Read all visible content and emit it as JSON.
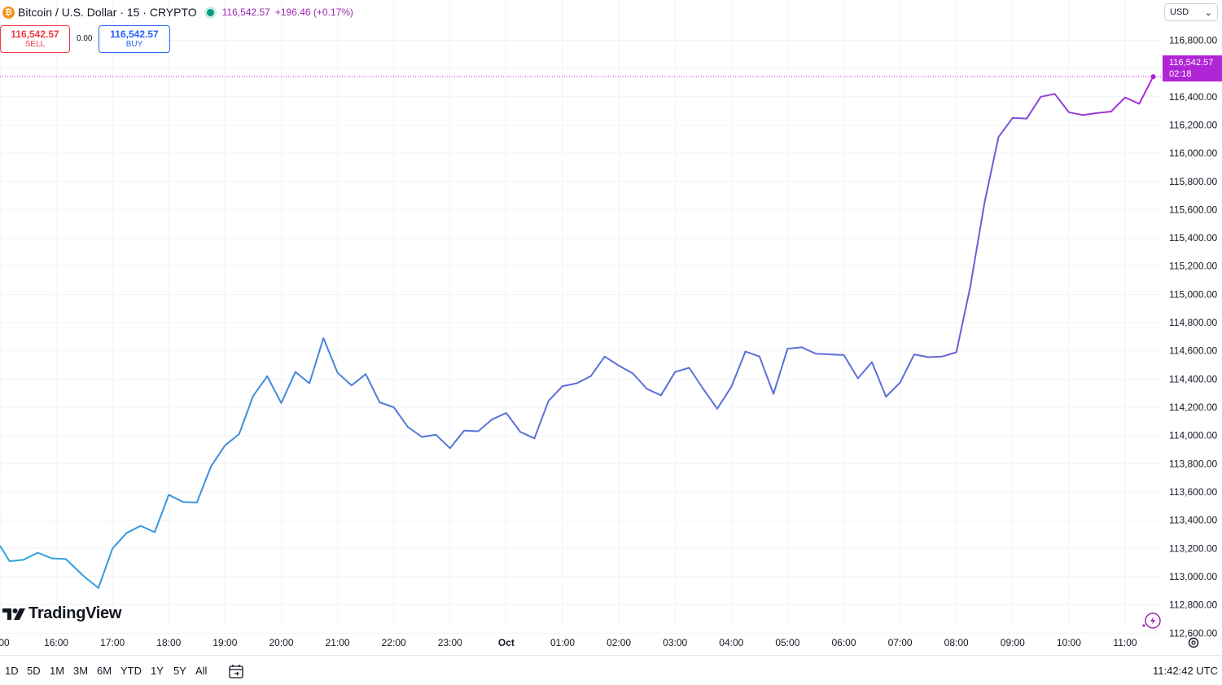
{
  "header": {
    "symbol": "Bitcoin / U.S. Dollar · 15 · CRYPTO",
    "last_price": "116,542.57",
    "change": "+196.46 (+0.17%)",
    "bitcoin_glyph": "₿"
  },
  "trade": {
    "sell_price": "116,542.57",
    "sell_label": "SELL",
    "spread": "0.00",
    "buy_price": "116,542.57",
    "buy_label": "BUY"
  },
  "currency": {
    "value": "USD",
    "caret": "⌄"
  },
  "price_tag": {
    "price": "116,542.57",
    "countdown": "02:18"
  },
  "logo_text": "TradingView",
  "toolbar": {
    "ranges": [
      "1D",
      "5D",
      "1M",
      "3M",
      "6M",
      "YTD",
      "1Y",
      "5Y",
      "All"
    ],
    "time": "11:42:42 UTC"
  },
  "colors": {
    "line_start": "#2aa7e0",
    "line_mid": "#5b6fd6",
    "line_end": "#b025d6",
    "last_price": "#b025d6"
  },
  "chart_data": {
    "type": "line",
    "title": "",
    "xlabel": "",
    "ylabel": "",
    "x_unit": "hours",
    "ylim": [
      112550,
      116970
    ],
    "xlim": [
      15.05,
      11.95
    ],
    "grid": true,
    "x_ticks": [
      {
        "label": "00",
        "x": 15.0
      },
      {
        "label": "16:00",
        "x": 16.0
      },
      {
        "label": "17:00",
        "x": 17.0
      },
      {
        "label": "18:00",
        "x": 18.0
      },
      {
        "label": "19:00",
        "x": 19.0
      },
      {
        "label": "20:00",
        "x": 20.0
      },
      {
        "label": "21:00",
        "x": 21.0
      },
      {
        "label": "22:00",
        "x": 22.0
      },
      {
        "label": "23:00",
        "x": 23.0
      },
      {
        "label": "Oct",
        "x": 24.0
      },
      {
        "label": "01:00",
        "x": 25.0
      },
      {
        "label": "02:00",
        "x": 26.0
      },
      {
        "label": "03:00",
        "x": 27.0
      },
      {
        "label": "04:00",
        "x": 28.0
      },
      {
        "label": "05:00",
        "x": 29.0
      },
      {
        "label": "06:00",
        "x": 30.0
      },
      {
        "label": "07:00",
        "x": 31.0
      },
      {
        "label": "08:00",
        "x": 32.0
      },
      {
        "label": "09:00",
        "x": 33.0
      },
      {
        "label": "10:00",
        "x": 34.0
      },
      {
        "label": "11:00",
        "x": 35.0
      }
    ],
    "y_ticks": [
      "112,600.00",
      "112,800.00",
      "113,000.00",
      "113,200.00",
      "113,400.00",
      "113,600.00",
      "113,800.00",
      "114,000.00",
      "114,200.00",
      "114,400.00",
      "114,600.00",
      "114,800.00",
      "115,000.00",
      "115,200.00",
      "115,400.00",
      "115,600.00",
      "115,800.00",
      "116,000.00",
      "116,200.00",
      "116,400.00",
      "116,600.00",
      "116,800.00"
    ],
    "y_tick_values": [
      112600,
      112800,
      113000,
      113200,
      113400,
      113600,
      113800,
      114000,
      114200,
      114400,
      114600,
      114800,
      115000,
      115200,
      115400,
      115600,
      115800,
      116000,
      116200,
      116400,
      116600,
      116800
    ],
    "series": [
      {
        "x": [
          15.0,
          15.17,
          15.42,
          15.67,
          15.92,
          16.17,
          16.5,
          16.75,
          17.0,
          17.25,
          17.5,
          17.75,
          18.0,
          18.25,
          18.5,
          18.75,
          19.0,
          19.25,
          19.5,
          19.75,
          20.0,
          20.25,
          20.5,
          20.75,
          21.0,
          21.25,
          21.5,
          21.75,
          22.0,
          22.25,
          22.5,
          22.75,
          23.0,
          23.25,
          23.5,
          23.75,
          24.0,
          24.25,
          24.5,
          24.75,
          25.0,
          25.25,
          25.5,
          25.75,
          26.0,
          26.25,
          26.5,
          26.75,
          27.0,
          27.25,
          27.5,
          27.75,
          28.0,
          28.25,
          28.5,
          28.75,
          29.0,
          29.25,
          29.5,
          29.75,
          30.0,
          30.25,
          30.5,
          30.75,
          31.0,
          31.25,
          31.5,
          31.75,
          32.0,
          32.25,
          32.5,
          32.75,
          33.0,
          33.25,
          33.5,
          33.75,
          34.0,
          34.25,
          34.5,
          34.75,
          35.0,
          35.25,
          35.5
        ],
        "values": [
          113220,
          113110,
          113120,
          113170,
          113130,
          113125,
          113000,
          112920,
          113200,
          113310,
          113360,
          113315,
          113580,
          113530,
          113525,
          113780,
          113930,
          114010,
          114280,
          114420,
          114230,
          114450,
          114370,
          114690,
          114445,
          114355,
          114435,
          114235,
          114200,
          114060,
          113990,
          114005,
          113910,
          114035,
          114030,
          114115,
          114160,
          114025,
          113980,
          114245,
          114350,
          114370,
          114420,
          114560,
          114495,
          114440,
          114330,
          114285,
          114450,
          114480,
          114330,
          114190,
          114345,
          114595,
          114560,
          114295,
          114615,
          114625,
          114580,
          114575,
          114570,
          114405,
          114520,
          114275,
          114375,
          114575,
          114555,
          114560,
          114590,
          115060,
          115650,
          116115,
          116250,
          116245,
          116400,
          116420,
          116290,
          116270,
          116285,
          116295,
          116395,
          116350,
          116542.57
        ]
      }
    ],
    "last_price": 116542.57
  }
}
